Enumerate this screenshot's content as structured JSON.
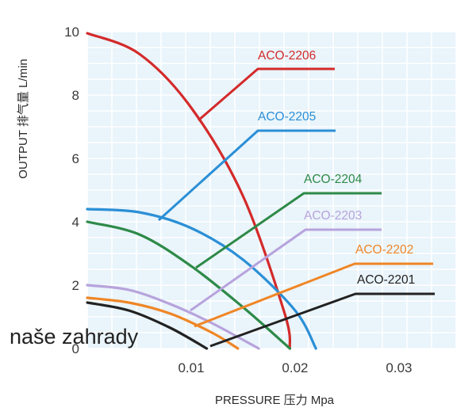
{
  "chart_data": {
    "type": "line",
    "xlabel": "PRESSURE 压力 Mpa",
    "ylabel": "OUTPUT 排气量 L/min",
    "xlim": [
      0,
      0.035
    ],
    "ylim": [
      0,
      10
    ],
    "x_ticks": [
      "0.01",
      "0.02",
      "0.03"
    ],
    "y_ticks": [
      "0",
      "2",
      "4",
      "6",
      "8",
      "10"
    ],
    "grid": true,
    "series": [
      {
        "name": "ACO-2206",
        "color": "#d42a2a",
        "x": [
          0,
          0.005,
          0.01,
          0.015,
          0.019,
          0.0195
        ],
        "values": [
          9.95,
          9.3,
          7.6,
          4.8,
          1.1,
          0
        ]
      },
      {
        "name": "ACO-2205",
        "color": "#2b8fd6",
        "x": [
          0,
          0.005,
          0.01,
          0.015,
          0.02,
          0.022
        ],
        "values": [
          4.4,
          4.3,
          3.8,
          2.8,
          1.2,
          0
        ]
      },
      {
        "name": "ACO-2204",
        "color": "#2e8a48",
        "x": [
          0,
          0.005,
          0.01,
          0.015,
          0.0195
        ],
        "values": [
          4.0,
          3.6,
          2.6,
          1.3,
          0
        ]
      },
      {
        "name": "ACO-2203",
        "color": "#b7a3dc",
        "x": [
          0,
          0.004,
          0.008,
          0.012,
          0.0165
        ],
        "values": [
          2.0,
          1.85,
          1.4,
          0.8,
          0
        ]
      },
      {
        "name": "ACO-2202",
        "color": "#ef8626",
        "x": [
          0,
          0.004,
          0.008,
          0.012,
          0.0145
        ],
        "values": [
          1.6,
          1.45,
          1.1,
          0.5,
          0
        ]
      },
      {
        "name": "ACO-2201",
        "color": "#222222",
        "x": [
          0,
          0.004,
          0.008,
          0.0115
        ],
        "values": [
          1.45,
          1.2,
          0.65,
          0
        ]
      }
    ]
  },
  "watermark": "naše zahrady"
}
